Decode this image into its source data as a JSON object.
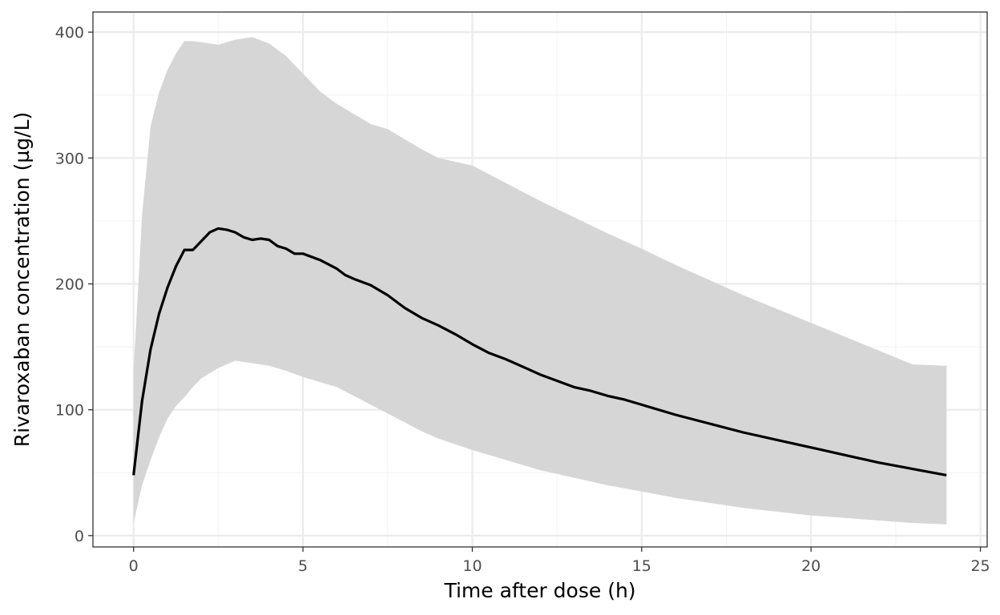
{
  "chart_data": {
    "type": "area",
    "title": "",
    "xlabel": "Time after dose (h)",
    "ylabel": "Rivaroxaban concentration (µg/L)",
    "xlim": [
      -1.2,
      25.2
    ],
    "ylim": [
      -9,
      416
    ],
    "x_ticks": [
      0,
      5,
      10,
      15,
      20,
      25
    ],
    "y_ticks": [
      0,
      100,
      200,
      300,
      400
    ],
    "grid": true,
    "legend": "none",
    "colors": {
      "line": "#000000",
      "band": "#d6d6d6",
      "grid_major": "#ebebeb",
      "grid_minor": "#f3f3f3",
      "panel_border": "#333333",
      "tick_text": "#4d4d4d"
    },
    "series": [
      {
        "kind": "median-line",
        "x": [
          0,
          0.25,
          0.5,
          0.75,
          1,
          1.25,
          1.5,
          1.75,
          2,
          2.25,
          2.5,
          2.75,
          3,
          3.25,
          3.5,
          3.75,
          4,
          4.25,
          4.5,
          4.75,
          5,
          5.5,
          6,
          6.25,
          6.5,
          7,
          7.5,
          8,
          8.5,
          9,
          9.5,
          10,
          10.5,
          11,
          11.5,
          12,
          12.5,
          13,
          13.5,
          14,
          14.5,
          15,
          16,
          17,
          18,
          19,
          20,
          21,
          22,
          23,
          24
        ],
        "y": [
          48,
          107,
          148,
          176,
          197,
          214,
          227,
          227,
          234,
          241,
          244,
          243,
          241,
          237,
          235,
          236,
          235,
          230,
          228,
          224,
          224,
          219,
          212,
          207,
          204,
          199,
          191,
          181,
          173,
          167,
          160,
          152,
          145,
          140,
          134,
          128,
          123,
          118,
          115,
          111,
          108,
          104,
          96,
          89,
          82,
          76,
          70,
          64,
          58,
          53,
          48
        ]
      },
      {
        "kind": "interval-band",
        "x": [
          0,
          0.25,
          0.5,
          0.75,
          1,
          1.25,
          1.5,
          1.75,
          2,
          2.5,
          3,
          3.5,
          4,
          4.5,
          5,
          5.5,
          6,
          6.5,
          7,
          7.5,
          8,
          8.5,
          9,
          10,
          11,
          12,
          13,
          14,
          15,
          16,
          17,
          18,
          19,
          20,
          21,
          22,
          23,
          24
        ],
        "upper": [
          130,
          255,
          325,
          352,
          370,
          383,
          393,
          393,
          392,
          390,
          394,
          396,
          391,
          381,
          367,
          353,
          343,
          335,
          327,
          323,
          315,
          307,
          300,
          294,
          280,
          266,
          253,
          240,
          228,
          215,
          203,
          191,
          180,
          169,
          158,
          147,
          136,
          135
        ],
        "lower": [
          10,
          40,
          60,
          78,
          93,
          103,
          110,
          118,
          125,
          133,
          139,
          137,
          135,
          131,
          126,
          122,
          118,
          111,
          104,
          97,
          90,
          83,
          77,
          68,
          60,
          52,
          46,
          40,
          35,
          30,
          26,
          22,
          19,
          16,
          14,
          12,
          10,
          9
        ]
      }
    ]
  }
}
